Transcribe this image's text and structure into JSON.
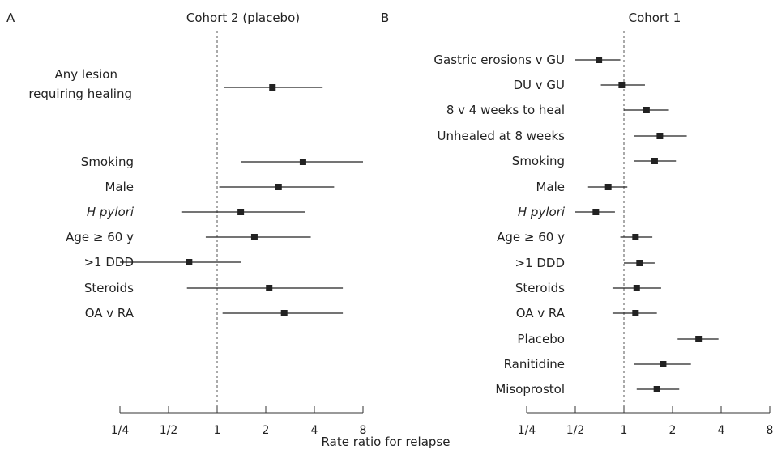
{
  "chart_data": [
    {
      "type": "forest",
      "panel": "A",
      "title": "Cohort 2 (placebo)",
      "scale": "log2",
      "xlim": [
        0.25,
        8
      ],
      "ticks": [
        0.25,
        0.5,
        1,
        2,
        4,
        8
      ],
      "tick_labels": [
        "1/4",
        "1/2",
        "1",
        "2",
        "4",
        "8"
      ],
      "reference_line": 1,
      "rows": [
        {
          "label": "Any lesion",
          "label2": "requiring healing",
          "italic": false,
          "estimate": 2.2,
          "low": 1.1,
          "high": 4.5
        },
        {
          "label": "Smoking",
          "italic": false,
          "estimate": 3.4,
          "low": 1.4,
          "high": 8.0
        },
        {
          "label": "Male",
          "italic": false,
          "estimate": 2.4,
          "low": 1.03,
          "high": 5.3
        },
        {
          "label": "H pylori",
          "italic": true,
          "estimate": 1.4,
          "low": 0.6,
          "high": 3.5
        },
        {
          "label": "Age ≥ 60 y",
          "italic": false,
          "estimate": 1.7,
          "low": 0.85,
          "high": 3.8
        },
        {
          "label": ">1 DDD",
          "italic": false,
          "estimate": 0.67,
          "low": 0.25,
          "high": 1.4
        },
        {
          "label": "Steroids",
          "italic": false,
          "estimate": 2.1,
          "low": 0.65,
          "high": 6.0
        },
        {
          "label": "OA v RA",
          "italic": false,
          "estimate": 2.6,
          "low": 1.08,
          "high": 6.0
        }
      ]
    },
    {
      "type": "forest",
      "panel": "B",
      "title": "Cohort 1",
      "scale": "log2",
      "xlim": [
        0.25,
        8
      ],
      "ticks": [
        0.25,
        0.5,
        1,
        2,
        4,
        8
      ],
      "tick_labels": [
        "1/4",
        "1/2",
        "1",
        "2",
        "4",
        "8"
      ],
      "reference_line": 1,
      "rows": [
        {
          "label": "Gastric erosions v GU",
          "italic": false,
          "estimate": 0.7,
          "low": 0.5,
          "high": 0.95
        },
        {
          "label": "DU v GU",
          "italic": false,
          "estimate": 0.97,
          "low": 0.72,
          "high": 1.35
        },
        {
          "label": "8 v 4 weeks to heal",
          "italic": false,
          "estimate": 1.38,
          "low": 1.0,
          "high": 1.9
        },
        {
          "label": "Unhealed at 8 weeks",
          "italic": false,
          "estimate": 1.67,
          "low": 1.15,
          "high": 2.45
        },
        {
          "label": "Smoking",
          "italic": false,
          "estimate": 1.55,
          "low": 1.15,
          "high": 2.1
        },
        {
          "label": "Male",
          "italic": false,
          "estimate": 0.8,
          "low": 0.6,
          "high": 1.05
        },
        {
          "label": "H pylori",
          "italic": true,
          "estimate": 0.67,
          "low": 0.5,
          "high": 0.88
        },
        {
          "label": "Age ≥ 60 y",
          "italic": false,
          "estimate": 1.18,
          "low": 0.95,
          "high": 1.5
        },
        {
          "label": ">1 DDD",
          "italic": false,
          "estimate": 1.25,
          "low": 1.0,
          "high": 1.55
        },
        {
          "label": "Steroids",
          "italic": false,
          "estimate": 1.2,
          "low": 0.85,
          "high": 1.7
        },
        {
          "label": "OA v RA",
          "italic": false,
          "estimate": 1.18,
          "low": 0.85,
          "high": 1.6
        },
        {
          "label": "Placebo",
          "italic": false,
          "estimate": 2.9,
          "low": 2.15,
          "high": 3.85
        },
        {
          "label": "Ranitidine",
          "italic": false,
          "estimate": 1.75,
          "low": 1.15,
          "high": 2.6
        },
        {
          "label": "Misoprostol",
          "italic": false,
          "estimate": 1.6,
          "low": 1.2,
          "high": 2.2
        }
      ]
    }
  ],
  "shared_xlabel": "Rate ratio for relapse"
}
